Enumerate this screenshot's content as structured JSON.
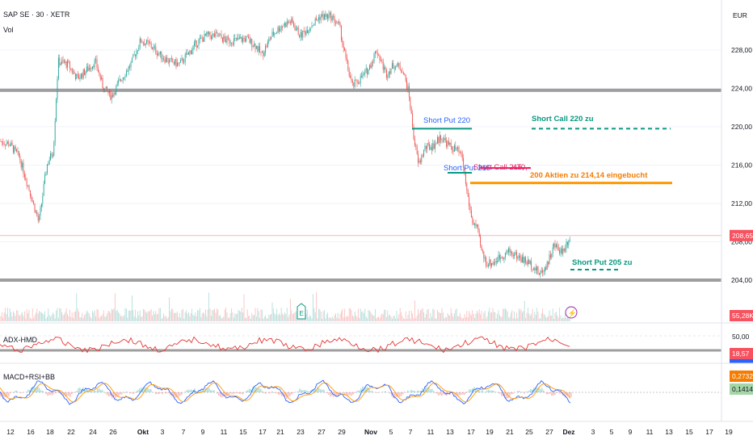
{
  "header": {
    "symbol": "SAP SE · 30 · XETR",
    "volume_label": "Vol",
    "currency": "EUR"
  },
  "price_axis": {
    "ticks": [
      "228,00",
      "224,00",
      "220,00",
      "216,00",
      "212,00",
      "208,00",
      "204,00"
    ],
    "last_price": "208,65",
    "volume_value": "55,28K"
  },
  "adx_panel": {
    "label": "ADX-HMD",
    "level_label": "50,00",
    "value": "18,57"
  },
  "macd_panel": {
    "label": "MACD+RSI+BB",
    "value_a": "0,2732",
    "value_b": "0,1414"
  },
  "time_axis": {
    "labels": [
      "12",
      "16",
      "18",
      "22",
      "24",
      "26",
      "Okt",
      "3",
      "7",
      "9",
      "11",
      "15",
      "17",
      "21",
      "23",
      "27",
      "29",
      "Nov",
      "5",
      "7",
      "11",
      "13",
      "17",
      "19",
      "21",
      "25",
      "27",
      "Dez",
      "3",
      "5",
      "9",
      "11",
      "13",
      "15",
      "17",
      "19"
    ],
    "bold_labels": [
      "Okt",
      "Nov",
      "Dez"
    ]
  },
  "annotations": {
    "short_put_220": "Short Put 220",
    "short_call_220": "Short Call 220 zu",
    "short_put_215": "Short Put 215",
    "short_call_215": "Short Call 215,",
    "plus_70": "+70,-",
    "aktien": "200 Aktien zu 214,14 eingebucht",
    "short_put_205": "Short Put 205 zu"
  },
  "markers": {
    "earnings": "E",
    "event": "⚡"
  },
  "colors": {
    "up": "#26a69a",
    "down": "#ef5350",
    "support": "#9e9e9e",
    "green_line": "#089981",
    "blue_text": "#2962ff",
    "pink": "#e91e63",
    "orange": "#ff9800",
    "last_price_bg": "#f7525f",
    "adx_line": "#e53935",
    "macd_blue": "#2962ff",
    "macd_orange": "#ff9800",
    "badge_orange": "#f57c00",
    "badge_green": "#a5d6a7"
  },
  "chart_data": {
    "type": "candlestick",
    "y_range": [
      202.0,
      232.0
    ],
    "support_levels": [
      223.8,
      204.0
    ],
    "close_path": [
      [
        0,
        218.5
      ],
      [
        12,
        218.2
      ],
      [
        24,
        216.8
      ],
      [
        36,
        213.5
      ],
      [
        48,
        210.0
      ],
      [
        58,
        216.0
      ],
      [
        66,
        217.5
      ],
      [
        72,
        226.8
      ],
      [
        84,
        226.5
      ],
      [
        96,
        225.0
      ],
      [
        108,
        226.0
      ],
      [
        118,
        226.8
      ],
      [
        128,
        224.0
      ],
      [
        138,
        223.2
      ],
      [
        150,
        225.0
      ],
      [
        162,
        226.5
      ],
      [
        174,
        229.0
      ],
      [
        186,
        228.5
      ],
      [
        198,
        227.5
      ],
      [
        210,
        226.8
      ],
      [
        222,
        226.5
      ],
      [
        232,
        227.5
      ],
      [
        244,
        228.8
      ],
      [
        256,
        229.5
      ],
      [
        268,
        229.5
      ],
      [
        280,
        229.0
      ],
      [
        292,
        229.0
      ],
      [
        304,
        229.2
      ],
      [
        316,
        228.5
      ],
      [
        324,
        227.5
      ],
      [
        336,
        229.5
      ],
      [
        348,
        230.5
      ],
      [
        360,
        231.0
      ],
      [
        372,
        229.5
      ],
      [
        384,
        230.5
      ],
      [
        396,
        231.5
      ],
      [
        410,
        231.5
      ],
      [
        420,
        230.5
      ],
      [
        428,
        227.0
      ],
      [
        436,
        224.2
      ],
      [
        446,
        225.0
      ],
      [
        456,
        226.0
      ],
      [
        466,
        228.0
      ],
      [
        478,
        225.5
      ],
      [
        488,
        226.5
      ],
      [
        498,
        226.0
      ],
      [
        506,
        223.5
      ],
      [
        512,
        219.0
      ],
      [
        518,
        216.0
      ],
      [
        526,
        217.8
      ],
      [
        536,
        218.0
      ],
      [
        546,
        219.0
      ],
      [
        556,
        218.0
      ],
      [
        566,
        217.5
      ],
      [
        572,
        216.8
      ],
      [
        578,
        213.2
      ],
      [
        584,
        210.2
      ],
      [
        590,
        209.5
      ],
      [
        596,
        207.0
      ],
      [
        602,
        205.8
      ],
      [
        610,
        205.8
      ],
      [
        620,
        206.5
      ],
      [
        630,
        207.0
      ],
      [
        640,
        206.5
      ],
      [
        650,
        206.0
      ],
      [
        660,
        205.5
      ],
      [
        668,
        204.6
      ],
      [
        676,
        205.5
      ],
      [
        686,
        207.6
      ],
      [
        696,
        207.0
      ],
      [
        706,
        208.65
      ]
    ],
    "volume_last": "55,28K",
    "adx_last": 18.57,
    "macd_last": [
      0.2732,
      0.1414
    ]
  }
}
